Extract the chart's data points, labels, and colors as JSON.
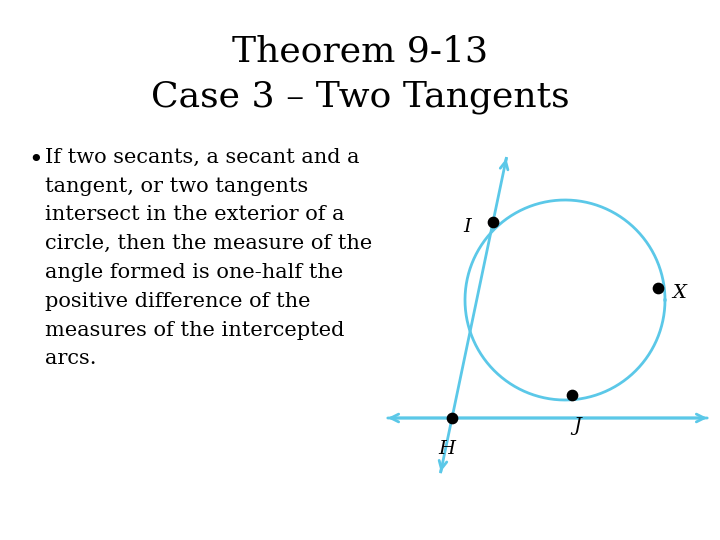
{
  "title_line1": "Theorem 9-13",
  "title_line2": "Case 3 – Two Tangents",
  "title_fontsize": 26,
  "bullet_text": "If two secants, a secant and a\ntangent, or two tangents\nintersect in the exterior of a\ncircle, then the measure of the\nangle formed is one-half the\npositive difference of the\nmeasures of the intercepted\narcs.",
  "bullet_fontsize": 15,
  "bg_color": "#ffffff",
  "diagram_color": "#5bc8e8",
  "label_color": "#000000",
  "lw": 2.0
}
